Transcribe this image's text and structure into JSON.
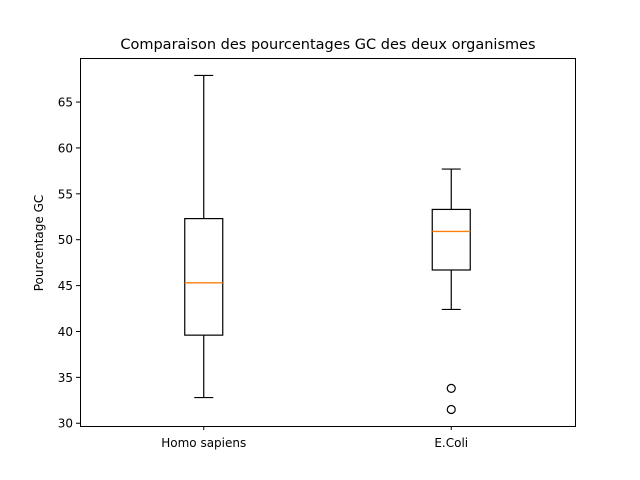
{
  "chart_data": {
    "type": "boxplot",
    "title": "Comparaison des pourcentages GC des deux organismes",
    "xlabel": "",
    "ylabel": "Pourcentage GC",
    "ylim": [
      29.7,
      69.8
    ],
    "yticks": [
      30,
      35,
      40,
      45,
      50,
      55,
      60,
      65
    ],
    "categories": [
      "Homo sapiens",
      "E.Coli"
    ],
    "boxes": [
      {
        "whislo": 32.8,
        "q1": 39.6,
        "med": 45.3,
        "q3": 52.3,
        "whishi": 67.9,
        "fliers": []
      },
      {
        "whislo": 42.4,
        "q1": 46.7,
        "med": 50.9,
        "q3": 53.3,
        "whishi": 57.7,
        "fliers": [
          33.8,
          31.5
        ]
      }
    ],
    "grid": false,
    "colors": {
      "median": "#ff7f0e",
      "box": "#000000"
    }
  }
}
